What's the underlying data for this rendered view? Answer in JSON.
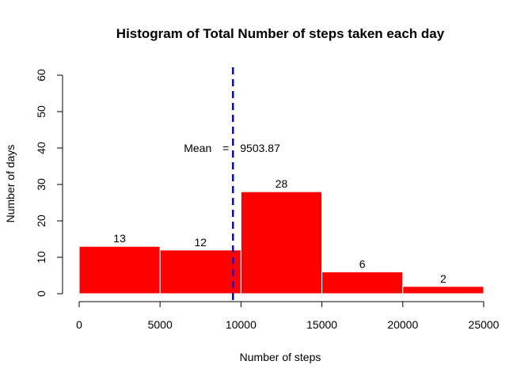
{
  "chart_data": {
    "type": "bar",
    "title": "Histogram of Total Number of steps taken each day",
    "xlabel": "Number of steps",
    "ylabel": "Number of days",
    "bins": [
      {
        "start": 0,
        "end": 5000,
        "count": 13,
        "label": "13"
      },
      {
        "start": 5000,
        "end": 10000,
        "count": 12,
        "label": "12"
      },
      {
        "start": 10000,
        "end": 15000,
        "count": 28,
        "label": "28"
      },
      {
        "start": 15000,
        "end": 20000,
        "count": 6,
        "label": "6"
      },
      {
        "start": 20000,
        "end": 25000,
        "count": 2,
        "label": "2"
      }
    ],
    "xlim": [
      0,
      25000
    ],
    "ylim": [
      0,
      60
    ],
    "x_ticks": [
      {
        "value": 0,
        "label": "0"
      },
      {
        "value": 5000,
        "label": "5000"
      },
      {
        "value": 10000,
        "label": "10000"
      },
      {
        "value": 15000,
        "label": "15000"
      },
      {
        "value": 20000,
        "label": "20000"
      },
      {
        "value": 25000,
        "label": "25000"
      }
    ],
    "y_ticks": [
      {
        "value": 0,
        "label": "0"
      },
      {
        "value": 10,
        "label": "10"
      },
      {
        "value": 20,
        "label": "20"
      },
      {
        "value": 30,
        "label": "30"
      },
      {
        "value": 40,
        "label": "40"
      },
      {
        "value": 50,
        "label": "50"
      },
      {
        "value": 60,
        "label": "60"
      }
    ],
    "mean_line": {
      "value": 9503.87,
      "label_prefix": "Mean",
      "label_equals": "=",
      "label_value": "9503.87",
      "label_y": 40,
      "color": "#0000ff"
    },
    "bar_color": "#ff0000",
    "bar_border_color": "#ffffff",
    "grid": false,
    "legend": "none"
  }
}
